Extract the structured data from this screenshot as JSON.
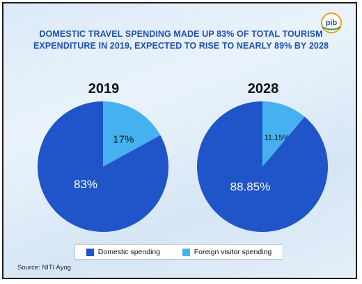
{
  "title_line1": "DOMESTIC TRAVEL SPENDING MADE UP 83% OF TOTAL TOURISM",
  "title_line2": "EXPENDITURE IN 2019, EXPECTED TO RISE TO NEARLY 89% BY 2028",
  "logo_text": "pib",
  "source": "Source: NITI Ayog",
  "colors": {
    "domestic": "#1f55c8",
    "foreign": "#45b1f0",
    "title": "#1f4fb5"
  },
  "chart_data": [
    {
      "type": "pie",
      "title": "2019",
      "categories": [
        "Domestic spending",
        "Foreign visitor spending"
      ],
      "values": [
        83,
        17
      ],
      "labels": [
        "83%",
        "17%"
      ]
    },
    {
      "type": "pie",
      "title": "2028",
      "categories": [
        "Domestic spending",
        "Foreign visitor spending"
      ],
      "values": [
        88.85,
        11.15
      ],
      "labels": [
        "88.85%",
        "11.15%"
      ]
    }
  ],
  "legend": [
    {
      "label": "Domestic spending",
      "color": "#1f55c8"
    },
    {
      "label": "Foreign visitor spending",
      "color": "#45b1f0"
    }
  ]
}
